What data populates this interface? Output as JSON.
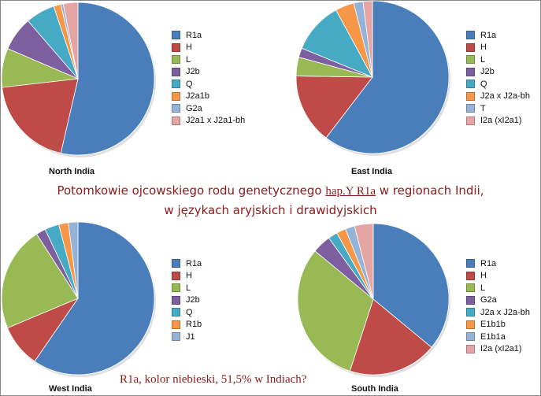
{
  "caption": {
    "line1_a": "Potomkowie ojcowskiego rodu genetycznego",
    "line1_hap": "hap.Y R1a",
    "line1_b": "w regionach Indii,",
    "line2": "w językach aryjskich i drawidyjskich"
  },
  "bottom_note": "R1a, kolor niebieski, 51,5% w Indiach?",
  "colors": {
    "R1a": "#4a7ebb",
    "H": "#be4b48",
    "L": "#98b954",
    "J2b": "#7d5fa0",
    "Q": "#46aac5",
    "J2a1b": "#f79646",
    "G2a_n": "#95b3d7",
    "J2a1xJ2a1bh": "#e6a5a5"
  },
  "chart_data": [
    {
      "type": "pie",
      "title": "North India",
      "categories": [
        "R1a",
        "H",
        "L",
        "J2b",
        "Q",
        "J2a1b",
        "G2a",
        "J2a1 x J2a1-bh"
      ],
      "values": [
        52,
        19,
        8,
        7,
        6,
        1.5,
        0.5,
        3
      ],
      "colors": [
        "#4a7ebb",
        "#be4b48",
        "#98b954",
        "#7d5fa0",
        "#46aac5",
        "#f79646",
        "#95b3d7",
        "#e6a5a5"
      ],
      "legend": "right"
    },
    {
      "type": "pie",
      "title": "East India",
      "categories": [
        "R1a",
        "H",
        "L",
        "J2b",
        "Q",
        "J2a x J2a-bh",
        "T",
        "I2a (xI2a1)"
      ],
      "values": [
        61,
        15,
        4,
        2,
        11,
        4,
        2,
        2
      ],
      "colors": [
        "#4a7ebb",
        "#be4b48",
        "#98b954",
        "#7d5fa0",
        "#46aac5",
        "#f79646",
        "#95b3d7",
        "#e6a5a5"
      ],
      "legend": "right"
    },
    {
      "type": "pie",
      "title": "West India",
      "categories": [
        "R1a",
        "H",
        "L",
        "J2b",
        "Q",
        "R1b",
        "J1"
      ],
      "values": [
        59,
        9,
        22,
        2,
        3,
        2,
        2
      ],
      "colors": [
        "#4a7ebb",
        "#be4b48",
        "#98b954",
        "#7d5fa0",
        "#46aac5",
        "#f79646",
        "#95b3d7"
      ],
      "legend": "right"
    },
    {
      "type": "pie",
      "title": "South India",
      "categories": [
        "R1a",
        "H",
        "L",
        "G2a",
        "J2a x J2a-bh",
        "E1b1b",
        "E1b1a",
        "I2a (xI2a1)"
      ],
      "values": [
        36,
        19,
        31,
        4,
        2,
        2,
        2,
        4
      ],
      "colors": [
        "#4a7ebb",
        "#be4b48",
        "#98b954",
        "#7d5fa0",
        "#46aac5",
        "#f79646",
        "#95b3d7",
        "#e6a5a5"
      ],
      "legend": "right"
    }
  ]
}
